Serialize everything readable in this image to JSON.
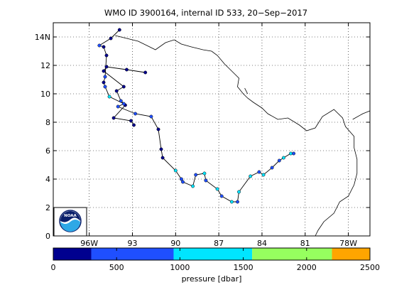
{
  "chart_data": {
    "type": "scatter",
    "title": "WMO ID 3900164, internal ID 533, 20−Sep−2017",
    "x_ticks": [
      {
        "value": -96,
        "label": "96W"
      },
      {
        "value": -93,
        "label": "93"
      },
      {
        "value": -90,
        "label": "90"
      },
      {
        "value": -87,
        "label": "87"
      },
      {
        "value": -84,
        "label": "84"
      },
      {
        "value": -81,
        "label": "81"
      },
      {
        "value": -78,
        "label": "78W"
      }
    ],
    "y_ticks": [
      {
        "value": 0,
        "label": "0"
      },
      {
        "value": 2,
        "label": "2"
      },
      {
        "value": 4,
        "label": "4"
      },
      {
        "value": 6,
        "label": "6"
      },
      {
        "value": 8,
        "label": "8"
      },
      {
        "value": 10,
        "label": "10"
      },
      {
        "value": 12,
        "label": "12"
      },
      {
        "value": 14,
        "label": "14N"
      }
    ],
    "xlim": [
      -98.5,
      -76.5
    ],
    "ylim": [
      0,
      15
    ],
    "grid": true,
    "colorbar": {
      "label": "pressure [dbar]",
      "range": [
        0,
        2500
      ],
      "tick_labels": [
        "0",
        "500",
        "1000",
        "1500",
        "2000",
        "2500"
      ],
      "tick_values": [
        0,
        500,
        1000,
        1500,
        2000,
        2500
      ],
      "bins": [
        {
          "from": 0,
          "to": 300,
          "color": "#00008f"
        },
        {
          "from": 300,
          "to": 950,
          "color": "#1f4fff"
        },
        {
          "from": 950,
          "to": 1570,
          "color": "#00e5ff"
        },
        {
          "from": 1570,
          "to": 2200,
          "color": "#96ff5f"
        },
        {
          "from": 2200,
          "to": 2500,
          "color": "#ffa500"
        }
      ]
    },
    "coastline": [
      [
        [
          -94.2,
          14.1
        ],
        [
          -93.4,
          13.9
        ],
        [
          -92.6,
          13.7
        ],
        [
          -92.0,
          13.4
        ],
        [
          -91.4,
          13.1
        ],
        [
          -90.7,
          13.6
        ],
        [
          -90.1,
          13.8
        ],
        [
          -89.6,
          13.5
        ],
        [
          -88.9,
          13.3
        ],
        [
          -88.1,
          13.1
        ],
        [
          -87.5,
          13.0
        ],
        [
          -87.1,
          12.7
        ],
        [
          -86.6,
          12.1
        ],
        [
          -86.1,
          11.6
        ],
        [
          -85.6,
          11.1
        ],
        [
          -85.7,
          10.5
        ],
        [
          -85.3,
          10.0
        ],
        [
          -85.0,
          9.7
        ],
        [
          -84.6,
          9.4
        ],
        [
          -84.0,
          9.0
        ],
        [
          -83.6,
          8.6
        ],
        [
          -82.9,
          8.2
        ],
        [
          -82.2,
          8.3
        ],
        [
          -81.4,
          7.8
        ],
        [
          -80.9,
          7.4
        ],
        [
          -80.3,
          7.6
        ],
        [
          -79.8,
          8.4
        ],
        [
          -79.0,
          8.9
        ],
        [
          -78.4,
          8.3
        ],
        [
          -78.2,
          7.7
        ],
        [
          -77.6,
          7.0
        ],
        [
          -77.6,
          6.2
        ],
        [
          -77.4,
          5.4
        ],
        [
          -77.4,
          4.4
        ],
        [
          -77.6,
          3.6
        ],
        [
          -78.0,
          2.8
        ],
        [
          -78.6,
          2.4
        ],
        [
          -79.0,
          1.6
        ],
        [
          -79.7,
          1.0
        ],
        [
          -80.1,
          0.4
        ],
        [
          -80.3,
          0.0
        ]
      ],
      [
        [
          -85.2,
          10.4
        ],
        [
          -85.0,
          10.0
        ]
      ],
      [
        [
          -77.7,
          8.2
        ],
        [
          -77.0,
          8.6
        ],
        [
          -76.5,
          8.8
        ]
      ]
    ],
    "series": [
      {
        "points": [
          [
            -92.1,
            11.5,
            150
          ],
          [
            -93.4,
            11.7,
            120
          ],
          [
            -94.8,
            11.9,
            180
          ],
          [
            -95.0,
            11.6,
            200
          ],
          [
            -93.6,
            10.5,
            200
          ],
          [
            -94.1,
            10.2,
            160
          ],
          [
            -93.8,
            9.5,
            300
          ],
          [
            -93.5,
            9.2,
            250
          ],
          [
            -94.3,
            8.3,
            200
          ],
          [
            -93.1,
            8.1,
            150
          ],
          [
            -92.9,
            7.8,
            180
          ]
        ]
      },
      {
        "points": [
          [
            -93.9,
            14.5,
            50
          ],
          [
            -94.5,
            13.9,
            120
          ],
          [
            -95.3,
            13.4,
            700
          ],
          [
            -95.0,
            13.3,
            200
          ],
          [
            -94.8,
            12.7,
            150
          ],
          [
            -94.9,
            11.2,
            300
          ],
          [
            -95.0,
            10.8,
            200
          ],
          [
            -94.9,
            10.5,
            350
          ],
          [
            -94.6,
            9.8,
            1000
          ],
          [
            -93.6,
            9.3,
            500
          ],
          [
            -94.0,
            9.1,
            400
          ],
          [
            -92.8,
            8.6,
            600
          ],
          [
            -91.7,
            8.4,
            500
          ],
          [
            -91.2,
            7.5,
            150
          ],
          [
            -91.0,
            6.1,
            200
          ],
          [
            -90.9,
            5.5,
            200
          ],
          [
            -90.0,
            4.6,
            1200
          ],
          [
            -89.6,
            4.0,
            300
          ],
          [
            -89.5,
            3.8,
            900
          ],
          [
            -88.8,
            3.5,
            1100
          ],
          [
            -88.6,
            4.3,
            700
          ],
          [
            -88.0,
            4.4,
            1200
          ],
          [
            -87.9,
            3.9,
            300
          ],
          [
            -87.1,
            3.3,
            1300
          ],
          [
            -86.8,
            2.8,
            800
          ],
          [
            -86.1,
            2.4,
            1000
          ],
          [
            -85.7,
            2.4,
            300
          ],
          [
            -85.6,
            3.1,
            1000
          ],
          [
            -84.8,
            4.2,
            1200
          ],
          [
            -84.2,
            4.5,
            600
          ],
          [
            -83.9,
            4.3,
            1100
          ],
          [
            -83.3,
            4.8,
            900
          ],
          [
            -82.8,
            5.3,
            400
          ],
          [
            -82.5,
            5.5,
            1300
          ],
          [
            -82.0,
            5.8,
            1100
          ],
          [
            -81.8,
            5.8,
            300
          ]
        ]
      }
    ],
    "logo_text": "NOAA"
  }
}
